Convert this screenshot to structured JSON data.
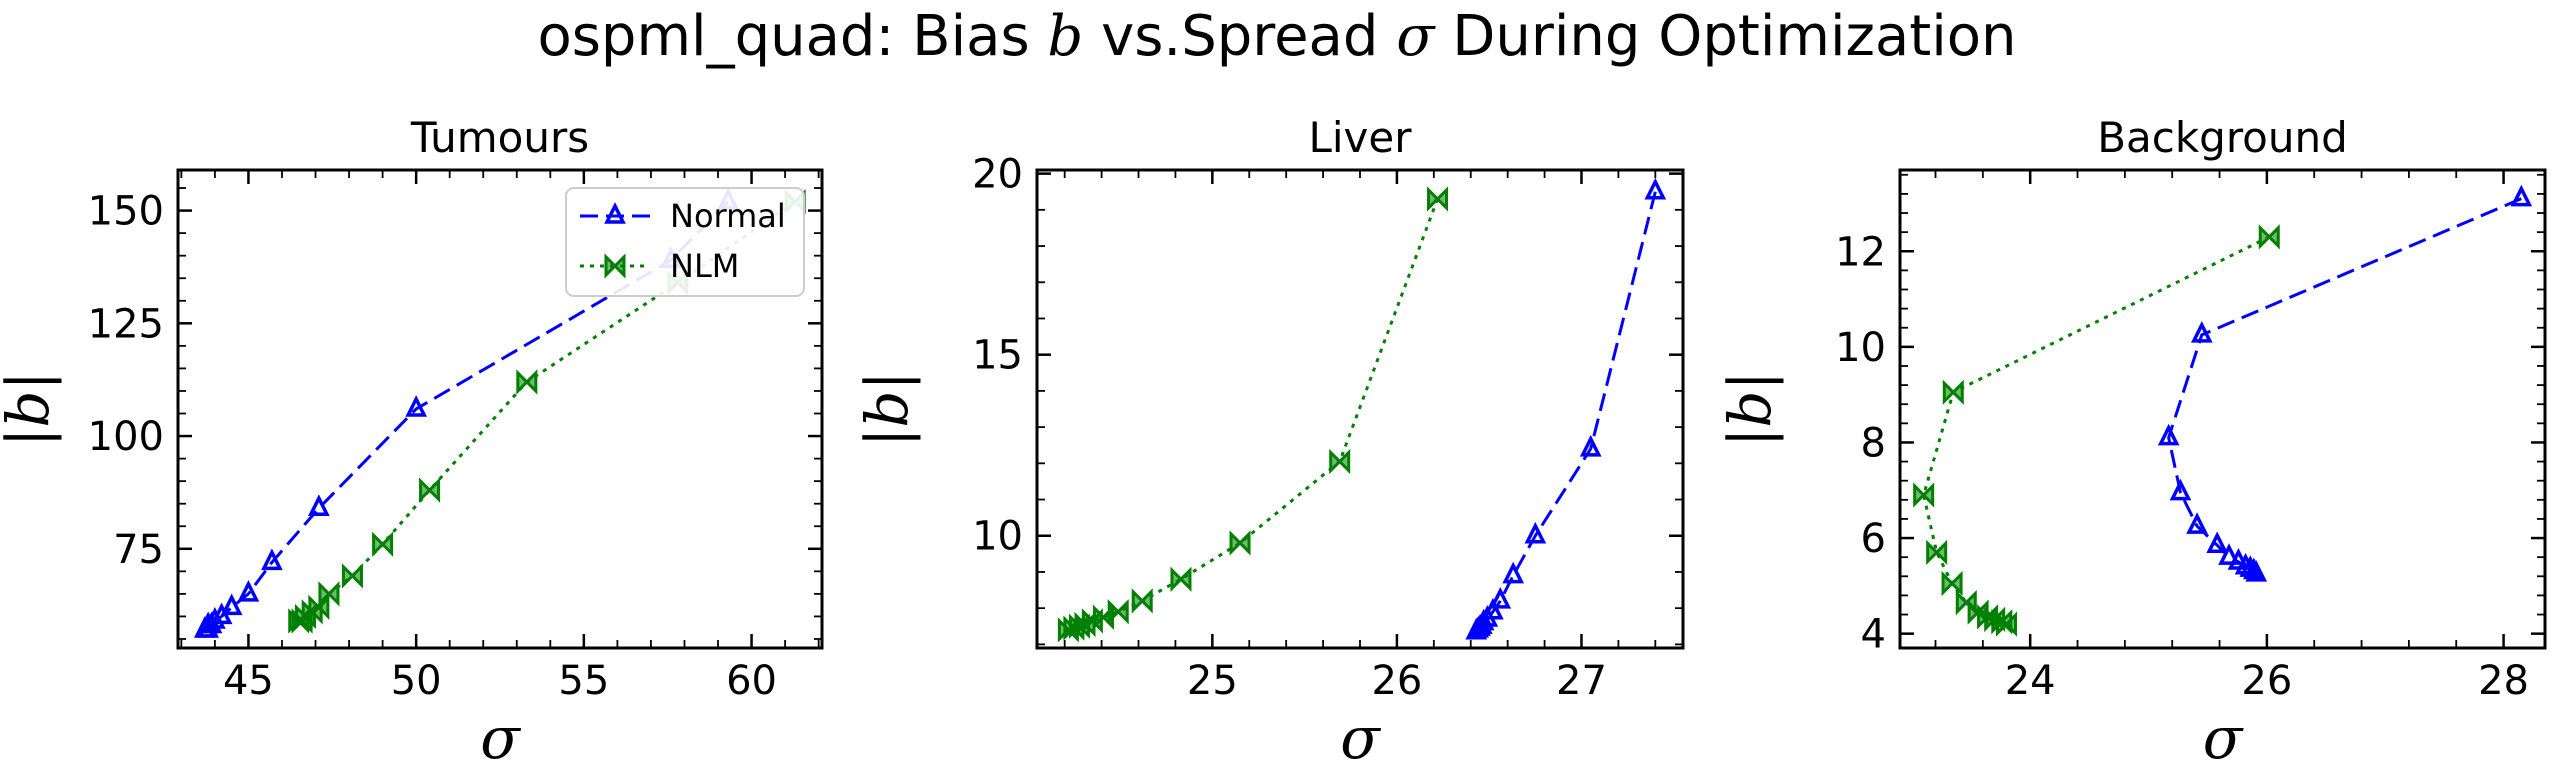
{
  "figure": {
    "title_prefix": "ospml_quad: Bias ",
    "title_b": "b",
    "title_mid": " vs.Spread ",
    "title_sigma": "σ",
    "title_suffix": " During Optimization"
  },
  "colors": {
    "Normal": "#0000ff",
    "NLM": "#008000"
  },
  "legend": {
    "placement": "top-right",
    "panel": "Tumours"
  },
  "chart_data": [
    {
      "type": "line",
      "title": "Tumours",
      "xlabel": "σ",
      "ylabel": "|b|",
      "xlim": [
        42.9,
        62.1
      ],
      "ylim": [
        53,
        159
      ],
      "xticks": [
        45,
        50,
        55,
        60
      ],
      "yticks": [
        75,
        100,
        125,
        150
      ],
      "series": [
        {
          "name": "Normal",
          "x": [
            59.3,
            57.6,
            50.0,
            47.1,
            45.7,
            45.0,
            44.5,
            44.2,
            44.0,
            43.9,
            43.8,
            43.8,
            43.7
          ],
          "y": [
            152,
            139,
            106,
            84,
            72,
            65,
            62,
            60,
            59,
            58,
            58,
            57,
            57
          ]
        },
        {
          "name": "NLM",
          "x": [
            61.3,
            57.8,
            53.3,
            50.4,
            49.0,
            48.1,
            47.4,
            47.1,
            46.9,
            46.7,
            46.6,
            46.5
          ],
          "y": [
            152,
            134,
            112,
            88,
            76,
            69,
            65,
            62,
            61,
            60,
            59,
            59
          ]
        }
      ]
    },
    {
      "type": "line",
      "title": "Liver",
      "xlabel": "σ",
      "ylabel": "|b|",
      "xlim": [
        24.05,
        27.55
      ],
      "ylim": [
        6.9,
        20.1
      ],
      "xticks": [
        25,
        26,
        27
      ],
      "yticks": [
        10,
        15,
        20
      ],
      "series": [
        {
          "name": "Normal",
          "x": [
            27.4,
            27.05,
            26.75,
            26.63,
            26.56,
            26.52,
            26.49,
            26.47,
            26.46,
            26.45,
            26.44,
            26.43
          ],
          "y": [
            19.5,
            12.4,
            10.0,
            8.9,
            8.2,
            7.9,
            7.7,
            7.6,
            7.5,
            7.45,
            7.4,
            7.35
          ]
        },
        {
          "name": "NLM",
          "x": [
            26.22,
            25.69,
            25.15,
            24.83,
            24.62,
            24.49,
            24.41,
            24.35,
            24.31,
            24.28,
            24.25,
            24.22
          ],
          "y": [
            19.3,
            12.05,
            9.8,
            8.8,
            8.2,
            7.9,
            7.75,
            7.65,
            7.55,
            7.5,
            7.45,
            7.4
          ]
        }
      ]
    },
    {
      "type": "line",
      "title": "Background",
      "xlabel": "σ",
      "ylabel": "|b|",
      "xlim": [
        22.9,
        28.35
      ],
      "ylim": [
        3.7,
        13.7
      ],
      "xticks": [
        24,
        26,
        28
      ],
      "yticks": [
        4,
        6,
        8,
        10,
        12
      ],
      "series": [
        {
          "name": "Normal",
          "x": [
            28.15,
            25.45,
            25.17,
            25.27,
            25.41,
            25.58,
            25.68,
            25.76,
            25.82,
            25.86,
            25.89,
            25.91
          ],
          "y": [
            13.1,
            10.25,
            8.1,
            6.95,
            6.25,
            5.85,
            5.6,
            5.5,
            5.4,
            5.35,
            5.3,
            5.25
          ]
        },
        {
          "name": "NLM",
          "x": [
            26.02,
            23.35,
            23.1,
            23.21,
            23.34,
            23.46,
            23.56,
            23.64,
            23.7,
            23.76,
            23.8
          ],
          "y": [
            12.3,
            9.05,
            6.9,
            5.7,
            5.05,
            4.65,
            4.45,
            4.35,
            4.3,
            4.25,
            4.2
          ]
        }
      ]
    }
  ]
}
